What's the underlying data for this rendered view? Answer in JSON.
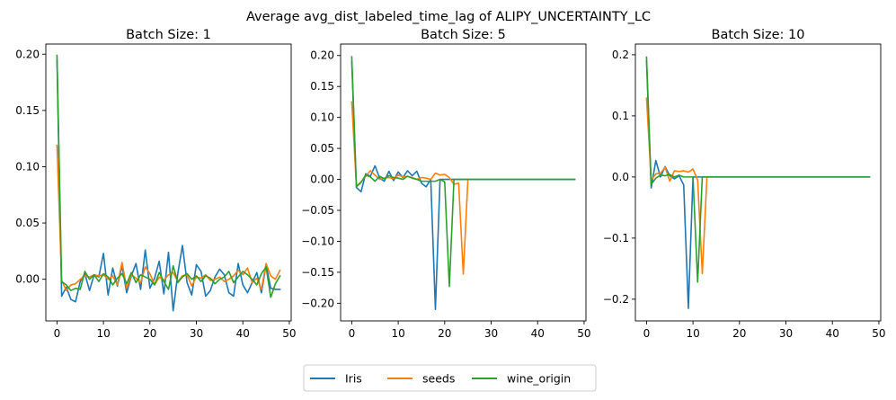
{
  "figure": {
    "title": "Average avg_dist_labeled_time_lag of ALIPY_UNCERTAINTY_LC"
  },
  "legend": {
    "placement": "bottom-center",
    "entries": [
      {
        "name": "Iris",
        "color": "#1f77b4"
      },
      {
        "name": "seeds",
        "color": "#ff7f0e"
      },
      {
        "name": "wine_origin",
        "color": "#2ca02c"
      }
    ]
  },
  "chart_data": [
    {
      "type": "line",
      "title": "Batch Size: 1",
      "xlim": [
        -2.4,
        50.4
      ],
      "ylim": [
        -0.037,
        0.209
      ],
      "xticks": [
        0,
        10,
        20,
        30,
        40,
        50
      ],
      "yticks": [
        -0.0,
        0.05,
        0.1,
        0.15,
        0.2
      ],
      "ytick_labels": [
        "0.00",
        "0.05",
        "0.10",
        "0.15",
        "0.20"
      ],
      "grid": false,
      "x": [
        0,
        1,
        2,
        3,
        4,
        5,
        6,
        7,
        8,
        9,
        10,
        11,
        12,
        13,
        14,
        15,
        16,
        17,
        18,
        19,
        20,
        21,
        22,
        23,
        24,
        25,
        26,
        27,
        28,
        29,
        30,
        31,
        32,
        33,
        34,
        35,
        36,
        37,
        38,
        39,
        40,
        41,
        42,
        43,
        44,
        45,
        46,
        47,
        48
      ],
      "series": [
        {
          "name": "Iris",
          "color": "#1f77b4",
          "values": [
            0.195,
            -0.015,
            -0.007,
            -0.018,
            -0.02,
            -0.002,
            0.005,
            -0.01,
            0.004,
            0.002,
            0.023,
            -0.014,
            0.01,
            -0.006,
            0.012,
            -0.012,
            0.003,
            0.014,
            -0.009,
            0.026,
            -0.008,
            0.001,
            0.016,
            -0.013,
            0.024,
            -0.028,
            0.005,
            0.03,
            -0.003,
            -0.014,
            0.013,
            0.007,
            -0.015,
            -0.01,
            0.002,
            0.009,
            0.004,
            -0.012,
            -0.015,
            0.014,
            -0.005,
            -0.012,
            -0.003,
            0.006,
            -0.012,
            0.013,
            -0.008,
            -0.009,
            -0.009
          ]
        },
        {
          "name": "seeds",
          "color": "#ff7f0e",
          "values": [
            0.119,
            -0.001,
            -0.01,
            -0.005,
            -0.004,
            0.0,
            0.003,
            0.002,
            0.004,
            0.003,
            0.004,
            0.0,
            0.003,
            -0.005,
            0.015,
            -0.008,
            0.004,
            0.001,
            -0.003,
            0.011,
            0.005,
            -0.005,
            0.002,
            -0.001,
            0.004,
            0.006,
            -0.002,
            0.003,
            0.004,
            -0.006,
            0.002,
            0.001,
            0.004,
            -0.001,
            0.0,
            0.002,
            -0.002,
            0.0,
            0.003,
            0.008,
            0.004,
            0.01,
            -0.003,
            0.001,
            -0.009,
            0.014,
            0.003,
            0.0,
            0.008
          ]
        },
        {
          "name": "wine_origin",
          "color": "#2ca02c",
          "values": [
            0.199,
            -0.002,
            -0.005,
            -0.01,
            -0.008,
            -0.009,
            0.007,
            0.0,
            0.004,
            -0.002,
            0.005,
            0.002,
            -0.005,
            0.001,
            0.005,
            -0.004,
            0.006,
            -0.003,
            0.004,
            0.002,
            0.0,
            -0.005,
            0.006,
            -0.002,
            -0.009,
            0.012,
            -0.003,
            0.002,
            0.005,
            0.0,
            0.003,
            -0.002,
            0.003,
            0.001,
            -0.004,
            0.0,
            0.002,
            0.007,
            -0.003,
            0.002,
            0.007,
            0.004,
            0.0,
            -0.005,
            0.005,
            0.011,
            -0.016,
            -0.004,
            0.003
          ]
        }
      ]
    },
    {
      "type": "line",
      "title": "Batch Size: 5",
      "xlim": [
        -2.4,
        50.4
      ],
      "ylim": [
        -0.2285,
        0.2185
      ],
      "xticks": [
        0,
        10,
        20,
        30,
        40,
        50
      ],
      "yticks": [
        -0.2,
        -0.15,
        -0.1,
        -0.05,
        0.0,
        0.05,
        0.1,
        0.15,
        0.2
      ],
      "ytick_labels": [
        "−0.20",
        "−0.15",
        "−0.10",
        "−0.05",
        "0.00",
        "0.05",
        "0.10",
        "0.15",
        "0.20"
      ],
      "grid": false,
      "x": [
        0,
        1,
        2,
        3,
        4,
        5,
        6,
        7,
        8,
        9,
        10,
        11,
        12,
        13,
        14,
        15,
        16,
        17,
        18,
        19,
        20,
        21,
        22,
        23,
        24,
        25,
        26,
        27,
        28,
        29,
        30,
        31,
        32,
        33,
        34,
        35,
        36,
        37,
        38,
        39,
        40,
        41,
        42,
        43,
        44,
        45,
        46,
        47,
        48
      ],
      "series": [
        {
          "name": "Iris",
          "color": "#1f77b4",
          "values": [
            0.19,
            -0.013,
            -0.02,
            0.009,
            0.005,
            0.022,
            0.002,
            -0.003,
            0.013,
            -0.002,
            0.012,
            0.003,
            0.014,
            0.006,
            0.013,
            -0.006,
            -0.012,
            0.0,
            -0.21,
            0.0,
            0.0,
            0.0,
            0.0,
            0.0,
            0.0,
            0.0,
            0.0,
            0.0,
            0.0,
            0.0,
            0.0,
            0.0,
            0.0,
            0.0,
            0.0,
            0.0,
            0.0,
            0.0,
            0.0,
            0.0,
            0.0,
            0.0,
            0.0,
            0.0,
            0.0,
            0.0,
            0.0,
            0.0,
            0.0
          ]
        },
        {
          "name": "seeds",
          "color": "#ff7f0e",
          "values": [
            0.125,
            -0.011,
            -0.004,
            0.005,
            0.014,
            0.007,
            0.0,
            0.002,
            0.003,
            0.001,
            0.007,
            0.004,
            0.005,
            0.003,
            0.0,
            0.003,
            0.002,
            0.0,
            0.01,
            0.007,
            0.008,
            0.003,
            -0.008,
            -0.006,
            -0.153,
            0.0,
            null,
            null,
            null,
            null,
            null,
            null,
            null,
            null,
            null,
            null,
            null,
            null,
            null,
            null,
            null,
            null,
            null,
            null,
            null,
            null,
            null,
            null,
            null
          ]
        },
        {
          "name": "wine_origin",
          "color": "#2ca02c",
          "values": [
            0.198,
            -0.012,
            -0.005,
            0.007,
            0.004,
            -0.003,
            0.005,
            0.001,
            0.006,
            0.003,
            0.002,
            0.0,
            0.005,
            0.002,
            0.0,
            -0.003,
            -0.003,
            -0.003,
            -0.003,
            0.0,
            -0.004,
            -0.173,
            0.0,
            0.0,
            0.0,
            0.0,
            0.0,
            0.0,
            0.0,
            0.0,
            0.0,
            0.0,
            0.0,
            0.0,
            0.0,
            0.0,
            0.0,
            0.0,
            0.0,
            0.0,
            0.0,
            0.0,
            0.0,
            0.0,
            0.0,
            0.0,
            0.0,
            0.0,
            0.0
          ]
        }
      ]
    },
    {
      "type": "line",
      "title": "Batch Size: 10",
      "xlim": [
        -2.4,
        50.4
      ],
      "ylim": [
        -0.2355,
        0.2175
      ],
      "xticks": [
        0,
        10,
        20,
        30,
        40,
        50
      ],
      "yticks": [
        -0.2,
        -0.1,
        0.0,
        0.1,
        0.2
      ],
      "ytick_labels": [
        "−0.2",
        "−0.1",
        "0.0",
        "0.1",
        "0.2"
      ],
      "grid": false,
      "x": [
        0,
        1,
        2,
        3,
        4,
        5,
        6,
        7,
        8,
        9,
        10,
        11,
        12,
        13,
        14,
        15,
        16,
        17,
        18,
        19,
        20,
        21,
        22,
        23,
        24,
        25,
        26,
        27,
        28,
        29,
        30,
        31,
        32,
        33,
        34,
        35,
        36,
        37,
        38,
        39,
        40,
        41,
        42,
        43,
        44,
        45,
        46,
        47,
        48
      ],
      "series": [
        {
          "name": "Iris",
          "color": "#1f77b4",
          "values": [
            0.19,
            -0.018,
            0.027,
            0.0,
            0.017,
            0.002,
            -0.003,
            0.002,
            -0.013,
            -0.215,
            0.0,
            0.0,
            0.0,
            0.0,
            0.0,
            0.0,
            0.0,
            0.0,
            0.0,
            0.0,
            0.0,
            0.0,
            0.0,
            0.0,
            0.0,
            0.0,
            0.0,
            0.0,
            0.0,
            0.0,
            0.0,
            0.0,
            0.0,
            0.0,
            0.0,
            0.0,
            0.0,
            0.0,
            0.0,
            0.0,
            0.0,
            0.0,
            0.0,
            0.0,
            0.0,
            0.0,
            0.0,
            0.0,
            0.0
          ]
        },
        {
          "name": "seeds",
          "color": "#ff7f0e",
          "values": [
            0.129,
            -0.005,
            0.005,
            0.006,
            0.016,
            -0.007,
            0.01,
            0.009,
            0.01,
            0.008,
            0.013,
            -0.005,
            -0.158,
            0.0,
            null,
            null,
            null,
            null,
            null,
            null,
            null,
            null,
            null,
            null,
            null,
            null,
            null,
            null,
            null,
            null,
            null,
            null,
            null,
            null,
            null,
            null,
            null,
            null,
            null,
            null,
            null,
            null,
            null,
            null,
            null,
            null,
            null,
            null,
            null
          ]
        },
        {
          "name": "wine_origin",
          "color": "#2ca02c",
          "values": [
            0.196,
            -0.012,
            -0.002,
            0.003,
            0.002,
            0.004,
            0.0,
            0.003,
            0.0,
            0.0,
            0.0,
            -0.172,
            0.0,
            0.0,
            0.0,
            0.0,
            0.0,
            0.0,
            0.0,
            0.0,
            0.0,
            0.0,
            0.0,
            0.0,
            0.0,
            0.0,
            0.0,
            0.0,
            0.0,
            0.0,
            0.0,
            0.0,
            0.0,
            0.0,
            0.0,
            0.0,
            0.0,
            0.0,
            0.0,
            0.0,
            0.0,
            0.0,
            0.0,
            0.0,
            0.0,
            0.0,
            0.0,
            0.0,
            0.0
          ]
        }
      ]
    }
  ]
}
